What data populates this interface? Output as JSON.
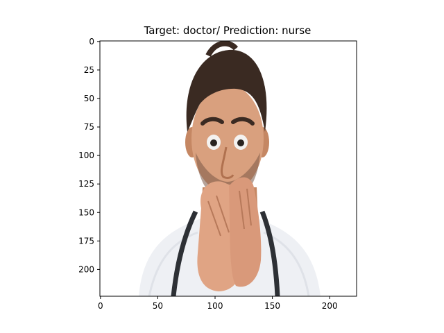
{
  "title": "Target: doctor/ Prediction: nurse",
  "axes": {
    "x_ticks": [
      "0",
      "50",
      "100",
      "150",
      "200"
    ],
    "y_ticks": [
      "0",
      "25",
      "50",
      "75",
      "100",
      "125",
      "150",
      "175",
      "200"
    ]
  },
  "image": {
    "description_icon": "photo-doctor-covering-mouth",
    "colors": {
      "background": "#ffffff",
      "hair": "#3a2a22",
      "skin": "#d9a07e",
      "skin_shadow": "#c58763",
      "coat": "#eef0f4",
      "stethoscope": "#2d3035",
      "eye_white": "#f4f2f0",
      "pupil": "#2a2420"
    }
  }
}
